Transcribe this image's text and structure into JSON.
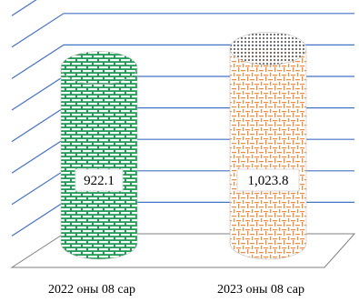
{
  "chart_data": {
    "type": "bar",
    "shape": "cylinder",
    "categories": [
      "2022 оны 08 сар",
      "2023 оны 08 сар"
    ],
    "values": [
      922.1,
      1023.8
    ],
    "value_labels": [
      "922.1",
      "1,023.8"
    ],
    "title": "",
    "xlabel": "",
    "ylabel": "",
    "ylim": [
      0,
      1150
    ],
    "grid": true,
    "colors": {
      "series_1": "#1f9a57",
      "series_2": "#f08a3c",
      "gridline": "#4472c4"
    }
  }
}
